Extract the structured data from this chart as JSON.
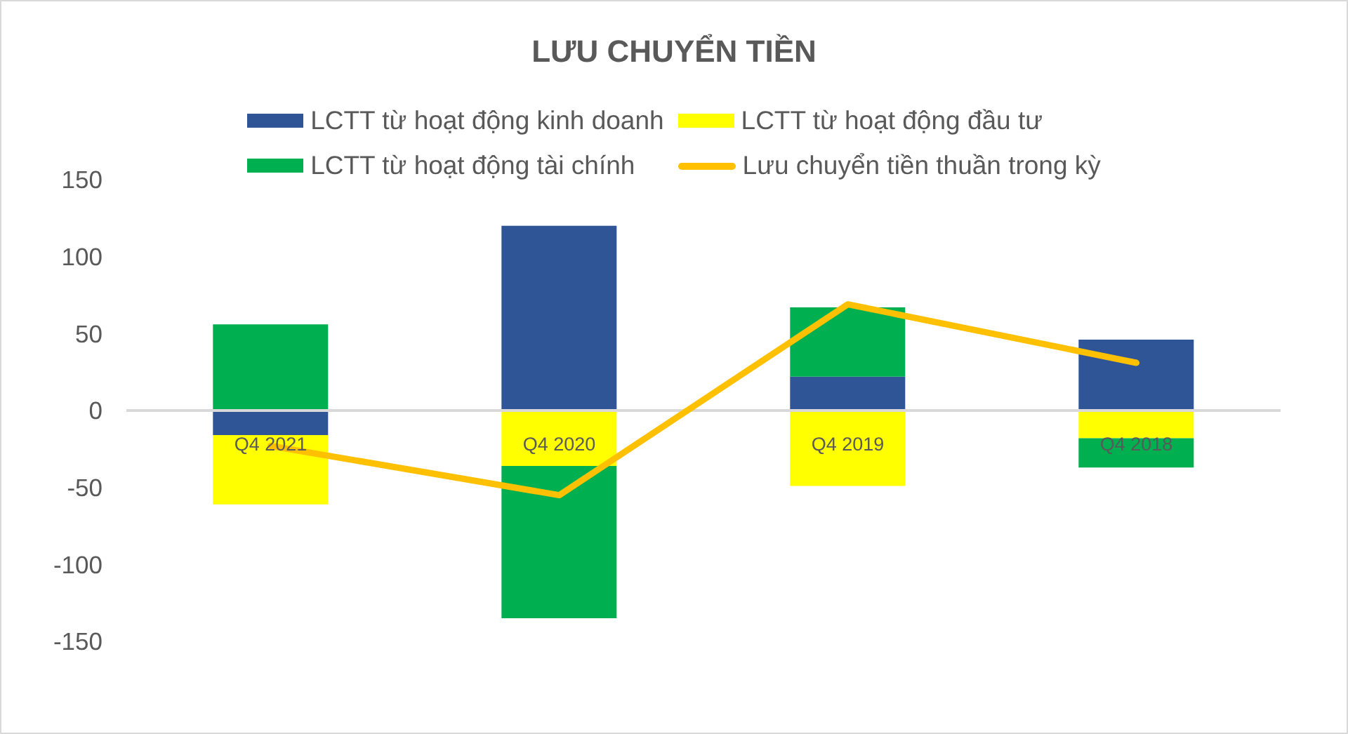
{
  "chart_data": {
    "type": "bar",
    "title": "LƯU CHUYỂN TIỀN",
    "categories": [
      "Q4 2021",
      "Q4 2020",
      "Q4 2019",
      "Q4 2018"
    ],
    "stacked": true,
    "series": [
      {
        "name": "LCTT từ hoạt động kinh doanh",
        "color": "#2f5597",
        "values": [
          -16,
          120,
          22,
          46
        ]
      },
      {
        "name": "LCTT từ hoạt động đầu tư",
        "color": "#ffff00",
        "values": [
          -45,
          -36,
          -49,
          -18
        ]
      },
      {
        "name": "LCTT từ hoạt động tài chính",
        "color": "#00b050",
        "values": [
          56,
          -99,
          45,
          -19
        ]
      },
      {
        "name": "Lưu chuyển tiền thuần trong kỳ",
        "color": "#ffc000",
        "type": "line",
        "values": [
          -23,
          -55,
          69,
          31
        ]
      }
    ],
    "ylim": [
      -150,
      150
    ],
    "yticks": [
      -150,
      -100,
      -50,
      0,
      50,
      100,
      150
    ],
    "legend": "top"
  }
}
